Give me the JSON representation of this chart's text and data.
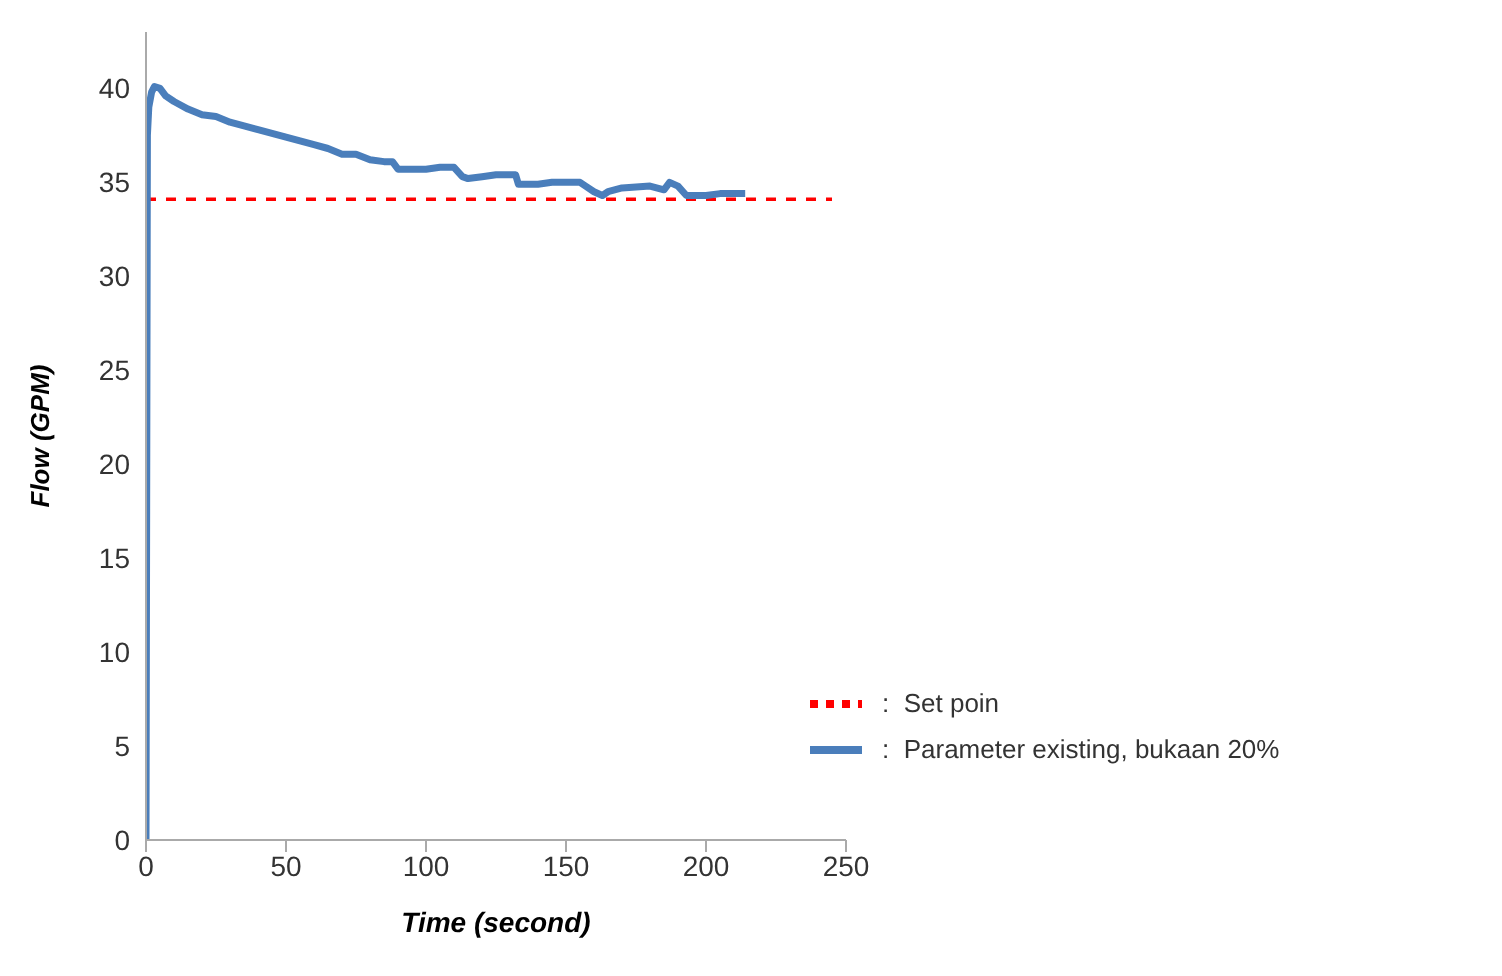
{
  "chart_data": {
    "type": "line",
    "xlabel": "Time (second)",
    "ylabel": "Flow (GPM)",
    "xlim": [
      0,
      250
    ],
    "xticks": [
      0,
      50,
      100,
      150,
      200,
      250
    ],
    "ylim": [
      0,
      43
    ],
    "yticks": [
      0,
      5,
      10,
      15,
      20,
      25,
      30,
      35,
      40
    ],
    "grid": false,
    "legend": "bottom right",
    "marker": "none",
    "series": [
      {
        "name": ":  Set poin",
        "color": "#ff0000",
        "line_style": "dashed",
        "x": [
          0,
          245
        ],
        "values": [
          34.1,
          34.1
        ]
      },
      {
        "name": ":  Parameter existing, bukaan 20%",
        "color": "#4a7ebb",
        "line_style": "solid",
        "x": [
          0,
          0.5,
          1,
          2,
          3,
          5,
          7,
          10,
          15,
          20,
          25,
          30,
          35,
          40,
          45,
          50,
          55,
          60,
          65,
          70,
          75,
          80,
          85,
          88,
          90,
          95,
          100,
          105,
          110,
          113,
          115,
          120,
          125,
          130,
          132,
          133,
          140,
          145,
          150,
          155,
          157,
          160,
          163,
          165,
          170,
          180,
          185,
          187,
          190,
          193,
          200,
          205,
          210,
          214
        ],
        "values": [
          0,
          37.5,
          39,
          39.8,
          40.1,
          40,
          39.6,
          39.3,
          38.9,
          38.6,
          38.5,
          38.2,
          38,
          37.8,
          37.6,
          37.4,
          37.2,
          37,
          36.8,
          36.5,
          36.5,
          36.2,
          36.1,
          36.1,
          35.7,
          35.7,
          35.7,
          35.8,
          35.8,
          35.3,
          35.2,
          35.3,
          35.4,
          35.4,
          35.4,
          34.9,
          34.9,
          35,
          35,
          35,
          34.8,
          34.5,
          34.3,
          34.5,
          34.7,
          34.8,
          34.6,
          35,
          34.8,
          34.3,
          34.3,
          34.4,
          34.4,
          34.4
        ]
      }
    ]
  }
}
